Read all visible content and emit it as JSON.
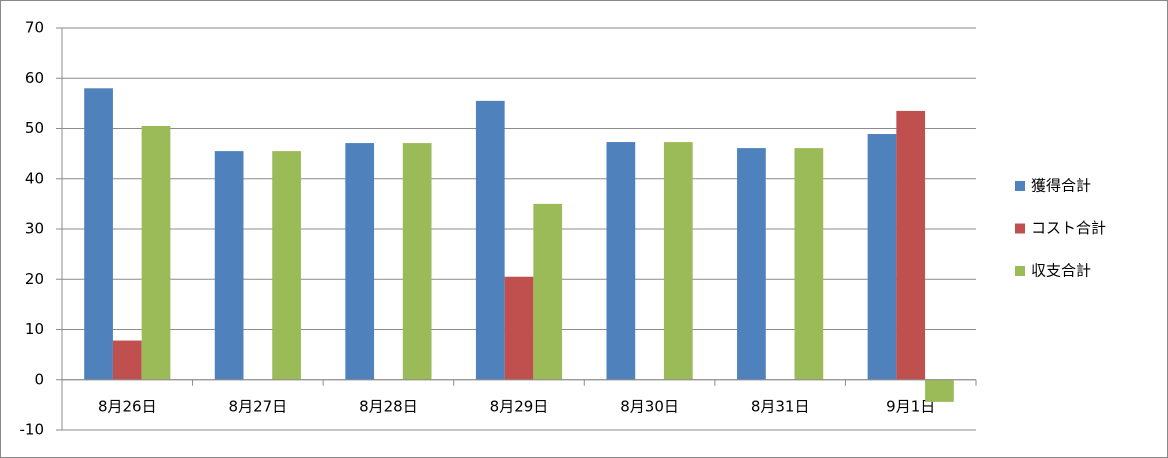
{
  "chart_data": {
    "type": "bar",
    "categories": [
      "8月26日",
      "8月27日",
      "8月28日",
      "8月29日",
      "8月30日",
      "8月31日",
      "9月1日"
    ],
    "series": [
      {
        "name": "獲得合計",
        "color": "#4f81bd",
        "values": [
          58.0,
          45.5,
          47.1,
          55.5,
          47.3,
          46.1,
          48.9
        ]
      },
      {
        "name": "コスト合計",
        "color": "#c0504d",
        "values": [
          7.8,
          0,
          0,
          20.5,
          0,
          0,
          53.5
        ]
      },
      {
        "name": "収支合計",
        "color": "#9bbb59",
        "values": [
          50.5,
          45.5,
          47.1,
          35.0,
          47.3,
          46.1,
          -4.4
        ]
      }
    ],
    "ylim": [
      -10,
      70
    ],
    "yticks": [
      -10,
      0,
      10,
      20,
      30,
      40,
      50,
      60,
      70
    ],
    "grid": true,
    "legend": "right"
  }
}
